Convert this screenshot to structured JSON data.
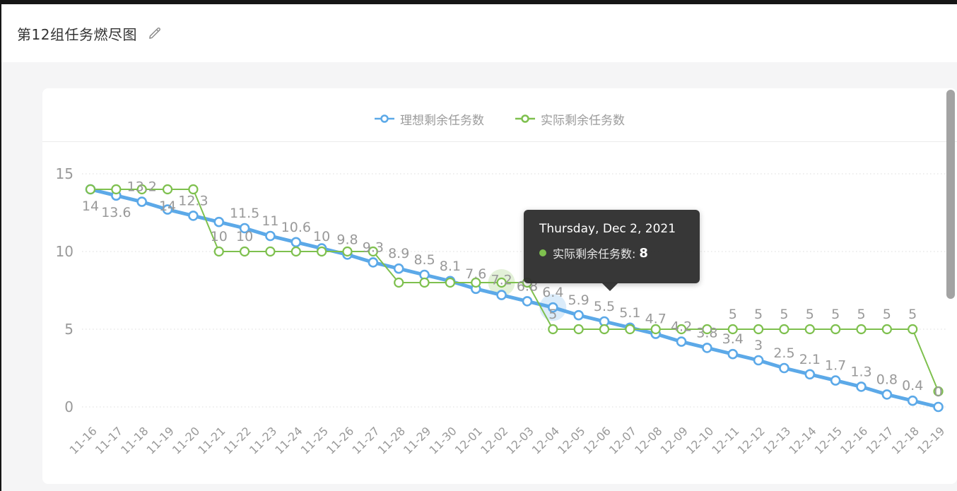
{
  "page": {
    "title": "第12组任务燃尽图"
  },
  "tooltip": {
    "date_line": "Thursday, Dec 2, 2021",
    "series_label": "实际剩余任务数:",
    "value": "8",
    "dot_color": "#7EC04E"
  },
  "chart_data": {
    "type": "line",
    "title": "",
    "x": [
      "11-16",
      "11-17",
      "11-18",
      "11-19",
      "11-20",
      "11-21",
      "11-22",
      "11-23",
      "11-24",
      "11-25",
      "11-26",
      "11-27",
      "11-28",
      "11-29",
      "11-30",
      "12-01",
      "12-02",
      "12-03",
      "12-04",
      "12-05",
      "12-06",
      "12-07",
      "12-08",
      "12-09",
      "12-10",
      "12-11",
      "12-12",
      "12-13",
      "12-14",
      "12-15",
      "12-16",
      "12-17",
      "12-18",
      "12-19"
    ],
    "ylim": [
      0,
      15
    ],
    "yticks": [
      0,
      5,
      10,
      15
    ],
    "grid": "dotted-horizontal",
    "legend_position": "top-center",
    "axis_text_color": "#999999",
    "grid_color": "#dddddd",
    "series": [
      {
        "name": "理想剩余任务数",
        "color": "#5CA9E8",
        "values": [
          14,
          13.6,
          13.2,
          12.7,
          12.3,
          11.9,
          11.5,
          11,
          10.6,
          10.2,
          9.8,
          9.3,
          8.9,
          8.5,
          8.1,
          7.6,
          7.2,
          6.8,
          6.4,
          5.9,
          5.5,
          5.1,
          4.7,
          4.2,
          3.8,
          3.4,
          3,
          2.5,
          2.1,
          1.7,
          1.3,
          0.8,
          0.4,
          0
        ]
      },
      {
        "name": "实际剩余任务数",
        "color": "#7EC04E",
        "values": [
          14,
          14,
          14,
          14,
          14,
          10,
          10,
          10,
          10,
          10,
          10,
          10,
          8,
          8,
          8,
          8,
          8,
          8,
          5,
          5,
          5,
          5,
          5,
          5,
          5,
          5,
          5,
          5,
          5,
          5,
          5,
          5,
          5,
          1
        ]
      }
    ],
    "point_labels": [
      {
        "s": 0,
        "i": 0,
        "t": "14",
        "pos": "below"
      },
      {
        "s": 0,
        "i": 1,
        "t": "13.6",
        "pos": "below"
      },
      {
        "s": 0,
        "i": 2,
        "t": "13.2",
        "pos": "above"
      },
      {
        "s": 1,
        "i": 3,
        "t": "14",
        "pos": "below"
      },
      {
        "s": 0,
        "i": 4,
        "t": "12.3",
        "pos": "above"
      },
      {
        "s": 1,
        "i": 5,
        "t": "10",
        "pos": "above"
      },
      {
        "s": 1,
        "i": 6,
        "t": "10",
        "pos": "above"
      },
      {
        "s": 0,
        "i": 6,
        "t": "11.5",
        "pos": "above"
      },
      {
        "s": 0,
        "i": 7,
        "t": "11",
        "pos": "above"
      },
      {
        "s": 0,
        "i": 8,
        "t": "10.6",
        "pos": "above"
      },
      {
        "s": 1,
        "i": 9,
        "t": "10",
        "pos": "above"
      },
      {
        "s": 0,
        "i": 10,
        "t": "9.8",
        "pos": "above"
      },
      {
        "s": 0,
        "i": 11,
        "t": "9.3",
        "pos": "above"
      },
      {
        "s": 0,
        "i": 12,
        "t": "8.9",
        "pos": "above"
      },
      {
        "s": 0,
        "i": 13,
        "t": "8.5",
        "pos": "above"
      },
      {
        "s": 0,
        "i": 14,
        "t": "8.1",
        "pos": "above"
      },
      {
        "s": 0,
        "i": 15,
        "t": "7.6",
        "pos": "above"
      },
      {
        "s": 0,
        "i": 16,
        "t": "7.2",
        "pos": "above"
      },
      {
        "s": 0,
        "i": 17,
        "t": "6.8",
        "pos": "above"
      },
      {
        "s": 0,
        "i": 18,
        "t": "6.4",
        "pos": "above"
      },
      {
        "s": 1,
        "i": 18,
        "t": "5",
        "pos": "above"
      },
      {
        "s": 0,
        "i": 19,
        "t": "5.9",
        "pos": "above"
      },
      {
        "s": 0,
        "i": 20,
        "t": "5.5",
        "pos": "above"
      },
      {
        "s": 0,
        "i": 21,
        "t": "5.1",
        "pos": "above"
      },
      {
        "s": 0,
        "i": 22,
        "t": "4.7",
        "pos": "above"
      },
      {
        "s": 0,
        "i": 23,
        "t": "4.2",
        "pos": "above"
      },
      {
        "s": 0,
        "i": 24,
        "t": "3.8",
        "pos": "above"
      },
      {
        "s": 0,
        "i": 25,
        "t": "3.4",
        "pos": "above"
      },
      {
        "s": 1,
        "i": 25,
        "t": "5",
        "pos": "above"
      },
      {
        "s": 0,
        "i": 26,
        "t": "3",
        "pos": "above"
      },
      {
        "s": 1,
        "i": 26,
        "t": "5",
        "pos": "above"
      },
      {
        "s": 0,
        "i": 27,
        "t": "2.5",
        "pos": "above"
      },
      {
        "s": 1,
        "i": 27,
        "t": "5",
        "pos": "above"
      },
      {
        "s": 0,
        "i": 28,
        "t": "2.1",
        "pos": "above"
      },
      {
        "s": 1,
        "i": 28,
        "t": "5",
        "pos": "above"
      },
      {
        "s": 0,
        "i": 29,
        "t": "1.7",
        "pos": "above"
      },
      {
        "s": 1,
        "i": 29,
        "t": "5",
        "pos": "above"
      },
      {
        "s": 0,
        "i": 30,
        "t": "1.3",
        "pos": "above"
      },
      {
        "s": 1,
        "i": 30,
        "t": "5",
        "pos": "above"
      },
      {
        "s": 0,
        "i": 31,
        "t": "0.8",
        "pos": "above"
      },
      {
        "s": 1,
        "i": 31,
        "t": "5",
        "pos": "above"
      },
      {
        "s": 0,
        "i": 32,
        "t": "0.4",
        "pos": "above"
      },
      {
        "s": 1,
        "i": 32,
        "t": "5",
        "pos": "above"
      },
      {
        "s": 0,
        "i": 33,
        "t": "0",
        "pos": "above"
      }
    ],
    "emphasis": [
      {
        "s": 1,
        "i": 16
      },
      {
        "s": 0,
        "i": 18
      }
    ]
  }
}
